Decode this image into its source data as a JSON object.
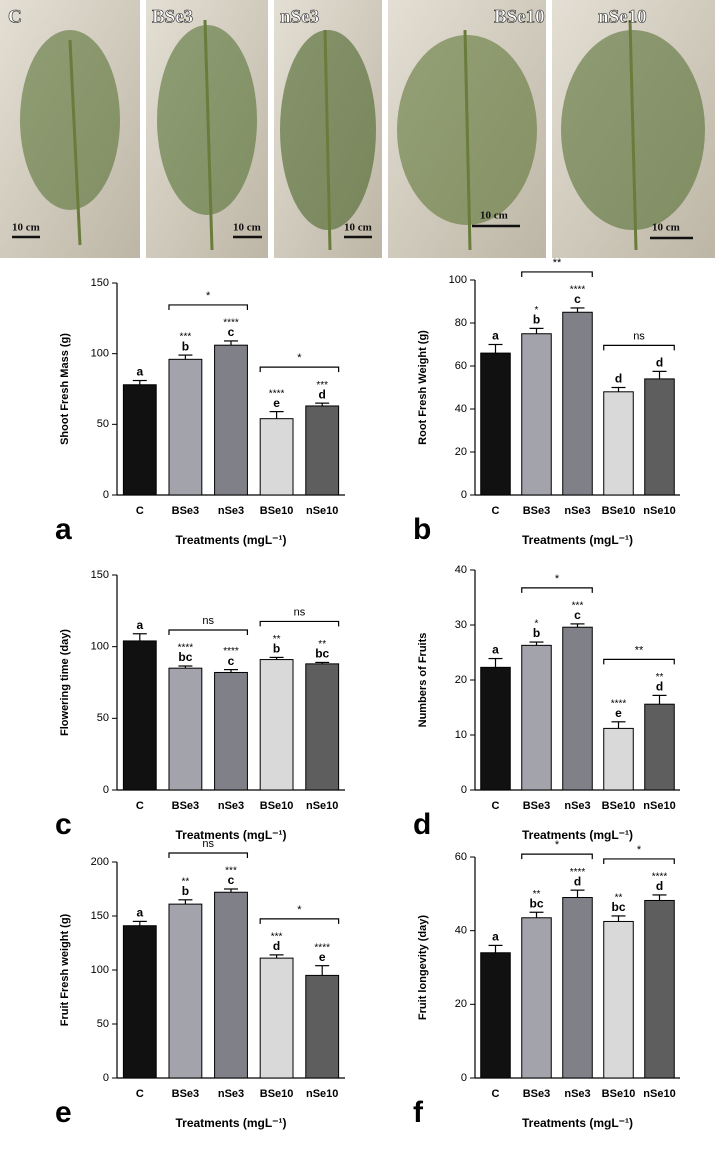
{
  "photos": [
    {
      "label": "C",
      "scale": "10 cm"
    },
    {
      "label": "BSe3",
      "scale": "10 cm"
    },
    {
      "label": "nSe3",
      "scale": "10 cm"
    },
    {
      "label": "BSe10",
      "scale": "10 cm"
    },
    {
      "label": "nSe10",
      "scale": "10 cm"
    }
  ],
  "chart_data": [
    {
      "type": "bar",
      "panel": "a",
      "ylabel": "Shoot Fresh Mass (g)",
      "xlabel": "Treatments (mgL⁻¹)",
      "categories": [
        "C",
        "BSe3",
        "nSe3",
        "BSe10",
        "nSe10"
      ],
      "values": [
        78,
        96,
        106,
        54,
        63
      ],
      "errors": [
        3,
        3,
        3,
        5,
        2
      ],
      "letters": [
        "a",
        "b",
        "c",
        "e",
        "d"
      ],
      "stars": [
        null,
        "***",
        "****",
        "****",
        "***"
      ],
      "brackets": [
        {
          "span": [
            "BSe3",
            "nSe3"
          ],
          "label": "*"
        },
        {
          "span": [
            "BSe10",
            "nSe10"
          ],
          "label": "*"
        }
      ],
      "colors": [
        "#111111",
        "#a3a3ab",
        "#808088",
        "#d9d9d9",
        "#5e5e5e"
      ],
      "ylim": [
        0,
        150
      ],
      "yticks": [
        0,
        50,
        100,
        150
      ]
    },
    {
      "type": "bar",
      "panel": "b",
      "ylabel": "Root Fresh Weight (g)",
      "xlabel": "Treatments (mgL⁻¹)",
      "categories": [
        "C",
        "BSe3",
        "nSe3",
        "BSe10",
        "nSe10"
      ],
      "values": [
        66,
        75,
        85,
        48,
        54
      ],
      "errors": [
        4,
        2.5,
        2,
        2,
        3.5
      ],
      "letters": [
        "a",
        "b",
        "c",
        "d",
        "d"
      ],
      "stars": [
        null,
        "*",
        "****",
        null,
        null
      ],
      "brackets": [
        {
          "span": [
            "BSe3",
            "nSe3"
          ],
          "label": "**"
        },
        {
          "span": [
            "BSe10",
            "nSe10"
          ],
          "label": "ns"
        }
      ],
      "colors": [
        "#111111",
        "#a3a3ab",
        "#808088",
        "#d9d9d9",
        "#5e5e5e"
      ],
      "ylim": [
        0,
        100
      ],
      "yticks": [
        0,
        20,
        40,
        60,
        80,
        100
      ]
    },
    {
      "type": "bar",
      "panel": "c",
      "ylabel": "Flowering time (day)",
      "xlabel": "Treatments (mgL⁻¹)",
      "categories": [
        "C",
        "BSe3",
        "nSe3",
        "BSe10",
        "nSe10"
      ],
      "values": [
        104,
        85,
        82,
        91,
        88
      ],
      "errors": [
        5,
        1.5,
        2,
        1.5,
        1
      ],
      "letters": [
        "a",
        "bc",
        "c",
        "b",
        "bc"
      ],
      "stars": [
        null,
        "****",
        "****",
        "**",
        "**"
      ],
      "brackets": [
        {
          "span": [
            "BSe3",
            "nSe3"
          ],
          "label": "ns"
        },
        {
          "span": [
            "BSe10",
            "nSe10"
          ],
          "label": "ns"
        }
      ],
      "colors": [
        "#111111",
        "#a3a3ab",
        "#808088",
        "#d9d9d9",
        "#5e5e5e"
      ],
      "ylim": [
        0,
        150
      ],
      "yticks": [
        0,
        50,
        100,
        150
      ]
    },
    {
      "type": "bar",
      "panel": "d",
      "ylabel": "Numbers of Fruits",
      "xlabel": "Treatments (mgL⁻¹)",
      "categories": [
        "C",
        "BSe3",
        "nSe3",
        "BSe10",
        "nSe10"
      ],
      "values": [
        22.3,
        26.3,
        29.6,
        11.2,
        15.6
      ],
      "errors": [
        1.6,
        0.6,
        0.6,
        1.2,
        1.6
      ],
      "letters": [
        "a",
        "b",
        "c",
        "e",
        "d"
      ],
      "stars": [
        null,
        "*",
        "***",
        "****",
        "**"
      ],
      "brackets": [
        {
          "span": [
            "BSe3",
            "nSe3"
          ],
          "label": "*"
        },
        {
          "span": [
            "BSe10",
            "nSe10"
          ],
          "label": "**"
        }
      ],
      "colors": [
        "#111111",
        "#a3a3ab",
        "#808088",
        "#d9d9d9",
        "#5e5e5e"
      ],
      "ylim": [
        0,
        40
      ],
      "yticks": [
        0,
        10,
        20,
        30,
        40
      ]
    },
    {
      "type": "bar",
      "panel": "e",
      "ylabel": "Fruit Fresh weight (g)",
      "xlabel": "Treatments (mgL⁻¹)",
      "categories": [
        "C",
        "BSe3",
        "nSe3",
        "BSe10",
        "nSe10"
      ],
      "values": [
        141,
        161,
        172,
        111,
        95
      ],
      "errors": [
        4,
        4,
        3,
        3,
        9
      ],
      "letters": [
        "a",
        "b",
        "c",
        "d",
        "e"
      ],
      "stars": [
        null,
        "**",
        "***",
        "***",
        "****"
      ],
      "brackets": [
        {
          "span": [
            "BSe3",
            "nSe3"
          ],
          "label": "ns"
        },
        {
          "span": [
            "BSe10",
            "nSe10"
          ],
          "label": "*"
        }
      ],
      "colors": [
        "#111111",
        "#a3a3ab",
        "#808088",
        "#d9d9d9",
        "#5e5e5e"
      ],
      "ylim": [
        0,
        200
      ],
      "yticks": [
        0,
        50,
        100,
        150,
        200
      ]
    },
    {
      "type": "bar",
      "panel": "f",
      "ylabel": "Fruit longevity (day)",
      "xlabel": "Treatments (mgL⁻¹)",
      "categories": [
        "C",
        "BSe3",
        "nSe3",
        "BSe10",
        "nSe10"
      ],
      "values": [
        34,
        43.5,
        49,
        42.5,
        48.2
      ],
      "errors": [
        2,
        1.5,
        2,
        1.5,
        1.5
      ],
      "letters": [
        "a",
        "bc",
        "d",
        "bc",
        "d"
      ],
      "stars": [
        null,
        "**",
        "****",
        "**",
        "****"
      ],
      "brackets": [
        {
          "span": [
            "BSe3",
            "nSe3"
          ],
          "label": "*"
        },
        {
          "span": [
            "BSe10",
            "nSe10"
          ],
          "label": "*"
        }
      ],
      "colors": [
        "#111111",
        "#a3a3ab",
        "#808088",
        "#d9d9d9",
        "#5e5e5e"
      ],
      "ylim": [
        0,
        60
      ],
      "yticks": [
        0,
        20,
        40,
        60
      ]
    }
  ]
}
